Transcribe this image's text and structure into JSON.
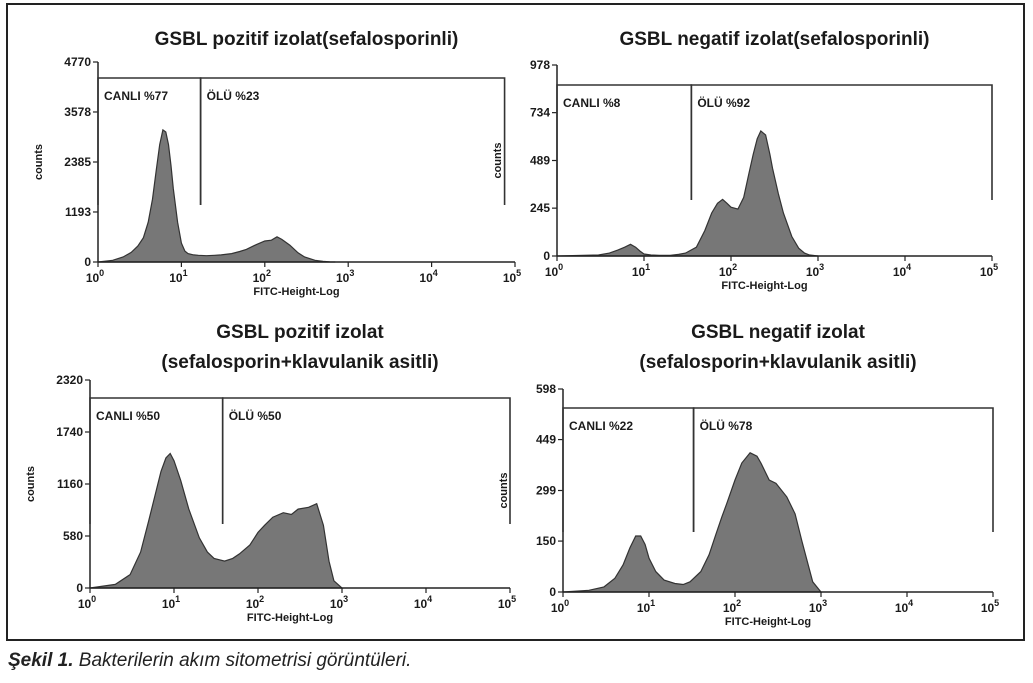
{
  "caption": {
    "label": "Şekil 1.",
    "text": " Bakterilerin akım sitometrisi görüntüleri."
  },
  "shared": {
    "xlabel": "FITC-Height-Log",
    "ylabel": "counts",
    "x_ticks": [
      "0",
      "1",
      "2",
      "3",
      "4",
      "5"
    ],
    "tick_base": "10",
    "fill_color": "#777777"
  },
  "chart_data": [
    {
      "type": "area",
      "title": [
        "GSBL pozitif izolat(sefalosporinli)"
      ],
      "y_ticks": [
        "0",
        "1193",
        "2385",
        "3578",
        "4770"
      ],
      "ylim": [
        0,
        4770
      ],
      "xscale": "log",
      "xlim": [
        1,
        100000
      ],
      "gates": [
        {
          "label": "CANLI %77",
          "from": 1,
          "to": 17
        },
        {
          "label": "ÖLÜ %23",
          "from": 17,
          "to": 75000
        }
      ],
      "x": [
        1,
        1.5,
        2,
        2.5,
        3,
        3.5,
        4,
        4.5,
        5,
        5.5,
        6,
        6.5,
        7,
        7.5,
        8,
        9,
        10,
        11,
        12,
        14,
        16,
        20,
        25,
        30,
        40,
        50,
        60,
        80,
        100,
        120,
        140,
        160,
        200,
        250,
        300,
        400,
        500,
        600,
        700
      ],
      "y": [
        0,
        40,
        120,
        230,
        380,
        580,
        950,
        1500,
        2200,
        2800,
        3150,
        3100,
        2800,
        2300,
        1750,
        950,
        450,
        260,
        200,
        170,
        160,
        150,
        160,
        170,
        200,
        250,
        300,
        420,
        500,
        520,
        600,
        540,
        400,
        220,
        120,
        40,
        15,
        5,
        0
      ]
    },
    {
      "type": "area",
      "title": [
        "GSBL negatif izolat(sefalosporinli)"
      ],
      "y_ticks": [
        "0",
        "245",
        "489",
        "734",
        "978"
      ],
      "ylim": [
        0,
        978
      ],
      "xscale": "log",
      "xlim": [
        1,
        100000
      ],
      "gates": [
        {
          "label": "CANLI %8",
          "from": 1,
          "to": 35
        },
        {
          "label": "ÖLÜ %92",
          "from": 35,
          "to": 100000
        }
      ],
      "x": [
        1,
        3,
        4,
        5,
        6,
        7,
        8,
        9,
        10,
        12,
        15,
        20,
        25,
        30,
        40,
        50,
        60,
        70,
        80,
        90,
        100,
        120,
        140,
        160,
        180,
        200,
        220,
        250,
        280,
        300,
        350,
        400,
        500,
        600,
        700,
        800,
        1000
      ],
      "y": [
        0,
        5,
        15,
        30,
        45,
        60,
        45,
        25,
        10,
        5,
        3,
        3,
        8,
        15,
        45,
        130,
        220,
        270,
        290,
        270,
        250,
        240,
        300,
        420,
        520,
        600,
        640,
        620,
        520,
        450,
        320,
        220,
        100,
        40,
        15,
        5,
        0
      ]
    },
    {
      "type": "area",
      "title": [
        "GSBL pozitif izolat",
        "(sefalosporin+klavulanik asitli)"
      ],
      "y_ticks": [
        "0",
        "580",
        "1160",
        "1740",
        "2320"
      ],
      "ylim": [
        0,
        2320
      ],
      "xscale": "log",
      "xlim": [
        1,
        100000
      ],
      "gates": [
        {
          "label": "CANLI %50",
          "from": 1,
          "to": 38
        },
        {
          "label": "ÖLÜ %50",
          "from": 38,
          "to": 100000
        }
      ],
      "x": [
        1,
        2,
        3,
        4,
        5,
        6,
        7,
        8,
        9,
        10,
        12,
        15,
        20,
        25,
        30,
        40,
        50,
        60,
        80,
        100,
        120,
        150,
        200,
        250,
        300,
        400,
        500,
        600,
        700,
        800,
        1000
      ],
      "y": [
        0,
        40,
        150,
        400,
        750,
        1050,
        1300,
        1450,
        1500,
        1420,
        1200,
        880,
        560,
        400,
        330,
        300,
        330,
        380,
        480,
        620,
        700,
        790,
        840,
        820,
        880,
        900,
        940,
        700,
        300,
        80,
        0
      ]
    },
    {
      "type": "area",
      "title": [
        "GSBL negatif izolat",
        "(sefalosporin+klavulanik asitli)"
      ],
      "y_ticks": [
        "0",
        "150",
        "299",
        "449",
        "598"
      ],
      "ylim": [
        0,
        598
      ],
      "xscale": "log",
      "xlim": [
        1,
        100000
      ],
      "gates": [
        {
          "label": "CANLI %22",
          "from": 1,
          "to": 33
        },
        {
          "label": "ÖLÜ %78",
          "from": 33,
          "to": 100000
        }
      ],
      "x": [
        1,
        2,
        3,
        4,
        5,
        6,
        7,
        8,
        9,
        10,
        12,
        15,
        20,
        25,
        30,
        40,
        50,
        60,
        70,
        80,
        100,
        120,
        150,
        180,
        200,
        250,
        300,
        400,
        500,
        600,
        800,
        1000
      ],
      "y": [
        0,
        5,
        15,
        40,
        80,
        130,
        165,
        165,
        140,
        100,
        60,
        35,
        25,
        22,
        30,
        60,
        110,
        170,
        220,
        260,
        330,
        380,
        410,
        400,
        380,
        330,
        320,
        280,
        230,
        150,
        30,
        0
      ]
    }
  ]
}
